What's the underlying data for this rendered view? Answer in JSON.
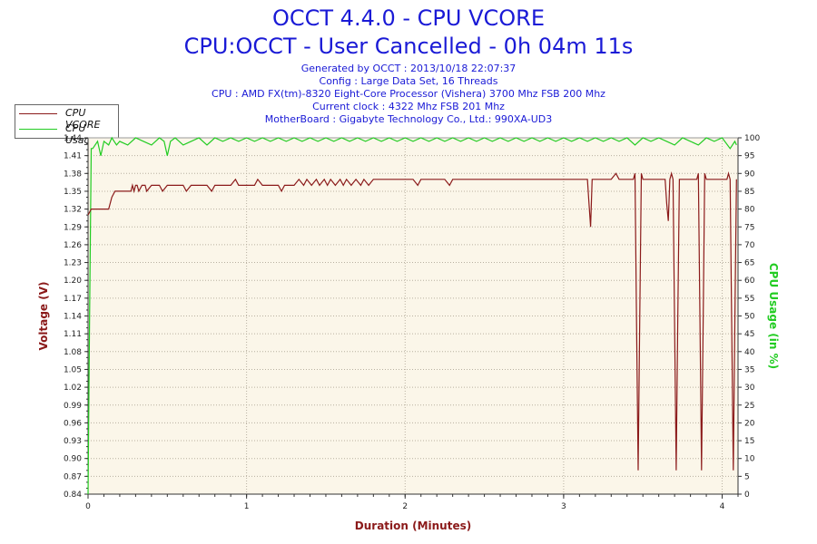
{
  "header": {
    "title": "OCCT 4.4.0 - CPU VCORE",
    "subtitle": "CPU:OCCT - User Cancelled - 0h 04m 11s",
    "info_lines": [
      "Generated by OCCT : 2013/10/18 22:07:37",
      "Config : Large Data Set, 16 Threads",
      "CPU : AMD FX(tm)-8320 Eight-Core Processor (Vishera) 3700 Mhz FSB 200 Mhz",
      "Current clock : 4322 Mhz FSB 201 Mhz",
      "MotherBoard : Gigabyte Technology Co., Ltd.: 990XA-UD3"
    ]
  },
  "legend": [
    {
      "label": "CPU VCORE",
      "color": "#8b1a1a"
    },
    {
      "label": "CPU Usage",
      "color": "#22cc22"
    }
  ],
  "chart_data": {
    "type": "line",
    "xlabel": "Duration (Minutes)",
    "ylabel_left": "Voltage (V)",
    "ylabel_right": "CPU Usage (in %)",
    "xlim": [
      0,
      4.1
    ],
    "ylim_left": [
      0.84,
      1.44
    ],
    "ylim_right": [
      0,
      100
    ],
    "x_ticks": [
      0,
      1,
      2,
      3,
      4
    ],
    "y_ticks_left": [
      "0.84",
      "0.87",
      "0.90",
      "0.93",
      "0.96",
      "0.99",
      "1.02",
      "1.05",
      "1.08",
      "1.11",
      "1.14",
      "1.17",
      "1.20",
      "1.23",
      "1.26",
      "1.29",
      "1.32",
      "1.35",
      "1.38",
      "1.41",
      "1.44"
    ],
    "y_ticks_right": [
      0,
      5,
      10,
      15,
      20,
      25,
      30,
      35,
      40,
      45,
      50,
      55,
      60,
      65,
      70,
      75,
      80,
      85,
      90,
      95,
      100
    ],
    "grid": true,
    "colors": {
      "vcore": "#8b1a1a",
      "usage": "#22cc22",
      "plot_bg": "#fbf6e9",
      "grid": "#b8b0a0",
      "left_axis": "#8b1a1a",
      "right_axis": "#22cc22",
      "xlabel": "#8b1a1a"
    },
    "series": [
      {
        "name": "CPU VCORE",
        "axis": "left",
        "points": [
          [
            0.0,
            1.31
          ],
          [
            0.02,
            1.32
          ],
          [
            0.05,
            1.32
          ],
          [
            0.13,
            1.32
          ],
          [
            0.15,
            1.34
          ],
          [
            0.17,
            1.35
          ],
          [
            0.25,
            1.35
          ],
          [
            0.27,
            1.35
          ],
          [
            0.28,
            1.36
          ],
          [
            0.29,
            1.35
          ],
          [
            0.3,
            1.36
          ],
          [
            0.31,
            1.36
          ],
          [
            0.32,
            1.35
          ],
          [
            0.34,
            1.36
          ],
          [
            0.36,
            1.36
          ],
          [
            0.37,
            1.35
          ],
          [
            0.4,
            1.36
          ],
          [
            0.45,
            1.36
          ],
          [
            0.47,
            1.35
          ],
          [
            0.5,
            1.36
          ],
          [
            0.55,
            1.36
          ],
          [
            0.6,
            1.36
          ],
          [
            0.62,
            1.35
          ],
          [
            0.65,
            1.36
          ],
          [
            0.7,
            1.36
          ],
          [
            0.75,
            1.36
          ],
          [
            0.78,
            1.35
          ],
          [
            0.8,
            1.36
          ],
          [
            0.9,
            1.36
          ],
          [
            0.93,
            1.37
          ],
          [
            0.95,
            1.36
          ],
          [
            1.0,
            1.36
          ],
          [
            1.05,
            1.36
          ],
          [
            1.07,
            1.37
          ],
          [
            1.1,
            1.36
          ],
          [
            1.15,
            1.36
          ],
          [
            1.2,
            1.36
          ],
          [
            1.22,
            1.35
          ],
          [
            1.24,
            1.36
          ],
          [
            1.3,
            1.36
          ],
          [
            1.33,
            1.37
          ],
          [
            1.36,
            1.36
          ],
          [
            1.38,
            1.37
          ],
          [
            1.41,
            1.36
          ],
          [
            1.44,
            1.37
          ],
          [
            1.46,
            1.36
          ],
          [
            1.49,
            1.37
          ],
          [
            1.51,
            1.36
          ],
          [
            1.53,
            1.37
          ],
          [
            1.56,
            1.36
          ],
          [
            1.59,
            1.37
          ],
          [
            1.61,
            1.36
          ],
          [
            1.63,
            1.37
          ],
          [
            1.66,
            1.36
          ],
          [
            1.69,
            1.37
          ],
          [
            1.72,
            1.36
          ],
          [
            1.74,
            1.37
          ],
          [
            1.77,
            1.36
          ],
          [
            1.8,
            1.37
          ],
          [
            1.85,
            1.37
          ],
          [
            1.9,
            1.37
          ],
          [
            1.95,
            1.37
          ],
          [
            2.0,
            1.37
          ],
          [
            2.05,
            1.37
          ],
          [
            2.08,
            1.36
          ],
          [
            2.1,
            1.37
          ],
          [
            2.15,
            1.37
          ],
          [
            2.2,
            1.37
          ],
          [
            2.25,
            1.37
          ],
          [
            2.28,
            1.36
          ],
          [
            2.3,
            1.37
          ],
          [
            2.35,
            1.37
          ],
          [
            2.4,
            1.37
          ],
          [
            2.45,
            1.37
          ],
          [
            2.5,
            1.37
          ],
          [
            2.55,
            1.37
          ],
          [
            2.6,
            1.37
          ],
          [
            2.7,
            1.37
          ],
          [
            2.8,
            1.37
          ],
          [
            2.9,
            1.37
          ],
          [
            3.0,
            1.37
          ],
          [
            3.1,
            1.37
          ],
          [
            3.15,
            1.37
          ],
          [
            3.16,
            1.33
          ],
          [
            3.17,
            1.29
          ],
          [
            3.18,
            1.37
          ],
          [
            3.25,
            1.37
          ],
          [
            3.3,
            1.37
          ],
          [
            3.33,
            1.38
          ],
          [
            3.35,
            1.37
          ],
          [
            3.4,
            1.37
          ],
          [
            3.44,
            1.37
          ],
          [
            3.45,
            1.38
          ],
          [
            3.46,
            1.13
          ],
          [
            3.47,
            0.88
          ],
          [
            3.48,
            1.13
          ],
          [
            3.49,
            1.38
          ],
          [
            3.5,
            1.37
          ],
          [
            3.55,
            1.37
          ],
          [
            3.6,
            1.37
          ],
          [
            3.64,
            1.37
          ],
          [
            3.65,
            1.33
          ],
          [
            3.66,
            1.3
          ],
          [
            3.67,
            1.37
          ],
          [
            3.68,
            1.38
          ],
          [
            3.69,
            1.37
          ],
          [
            3.7,
            1.13
          ],
          [
            3.71,
            0.88
          ],
          [
            3.72,
            1.13
          ],
          [
            3.73,
            1.37
          ],
          [
            3.75,
            1.37
          ],
          [
            3.8,
            1.37
          ],
          [
            3.84,
            1.37
          ],
          [
            3.85,
            1.38
          ],
          [
            3.86,
            1.13
          ],
          [
            3.87,
            0.88
          ],
          [
            3.88,
            1.13
          ],
          [
            3.89,
            1.38
          ],
          [
            3.9,
            1.37
          ],
          [
            3.95,
            1.37
          ],
          [
            4.0,
            1.37
          ],
          [
            4.03,
            1.37
          ],
          [
            4.04,
            1.38
          ],
          [
            4.05,
            1.37
          ],
          [
            4.06,
            1.13
          ],
          [
            4.07,
            0.88
          ],
          [
            4.08,
            1.13
          ],
          [
            4.09,
            1.37
          ]
        ]
      },
      {
        "name": "CPU Usage",
        "axis": "right",
        "points": [
          [
            0.0,
            0
          ],
          [
            0.01,
            50
          ],
          [
            0.02,
            97
          ],
          [
            0.03,
            97
          ],
          [
            0.06,
            99
          ],
          [
            0.08,
            95
          ],
          [
            0.1,
            99
          ],
          [
            0.13,
            98
          ],
          [
            0.15,
            100
          ],
          [
            0.18,
            98
          ],
          [
            0.2,
            99
          ],
          [
            0.25,
            98
          ],
          [
            0.3,
            100
          ],
          [
            0.35,
            99
          ],
          [
            0.4,
            98
          ],
          [
            0.45,
            100
          ],
          [
            0.48,
            99
          ],
          [
            0.5,
            95
          ],
          [
            0.52,
            99
          ],
          [
            0.55,
            100
          ],
          [
            0.6,
            98
          ],
          [
            0.65,
            99
          ],
          [
            0.7,
            100
          ],
          [
            0.75,
            98
          ],
          [
            0.8,
            100
          ],
          [
            0.85,
            99
          ],
          [
            0.9,
            100
          ],
          [
            0.95,
            99
          ],
          [
            1.0,
            100
          ],
          [
            1.05,
            99
          ],
          [
            1.1,
            100
          ],
          [
            1.15,
            99
          ],
          [
            1.2,
            100
          ],
          [
            1.25,
            99
          ],
          [
            1.3,
            100
          ],
          [
            1.35,
            99
          ],
          [
            1.4,
            100
          ],
          [
            1.45,
            99
          ],
          [
            1.5,
            100
          ],
          [
            1.55,
            99
          ],
          [
            1.6,
            100
          ],
          [
            1.65,
            99
          ],
          [
            1.7,
            100
          ],
          [
            1.75,
            99
          ],
          [
            1.8,
            100
          ],
          [
            1.85,
            99
          ],
          [
            1.9,
            100
          ],
          [
            1.95,
            99
          ],
          [
            2.0,
            100
          ],
          [
            2.05,
            99
          ],
          [
            2.1,
            100
          ],
          [
            2.15,
            99
          ],
          [
            2.2,
            100
          ],
          [
            2.25,
            99
          ],
          [
            2.3,
            100
          ],
          [
            2.35,
            99
          ],
          [
            2.4,
            100
          ],
          [
            2.45,
            99
          ],
          [
            2.5,
            100
          ],
          [
            2.55,
            99
          ],
          [
            2.6,
            100
          ],
          [
            2.65,
            99
          ],
          [
            2.7,
            100
          ],
          [
            2.75,
            99
          ],
          [
            2.8,
            100
          ],
          [
            2.85,
            99
          ],
          [
            2.9,
            100
          ],
          [
            2.95,
            99
          ],
          [
            3.0,
            100
          ],
          [
            3.05,
            99
          ],
          [
            3.1,
            100
          ],
          [
            3.15,
            99
          ],
          [
            3.2,
            100
          ],
          [
            3.25,
            99
          ],
          [
            3.3,
            100
          ],
          [
            3.35,
            99
          ],
          [
            3.4,
            100
          ],
          [
            3.45,
            98
          ],
          [
            3.5,
            100
          ],
          [
            3.55,
            99
          ],
          [
            3.6,
            100
          ],
          [
            3.65,
            99
          ],
          [
            3.7,
            98
          ],
          [
            3.75,
            100
          ],
          [
            3.8,
            99
          ],
          [
            3.85,
            98
          ],
          [
            3.9,
            100
          ],
          [
            3.95,
            99
          ],
          [
            4.0,
            100
          ],
          [
            4.05,
            97
          ],
          [
            4.08,
            99
          ],
          [
            4.09,
            98
          ]
        ]
      }
    ]
  }
}
